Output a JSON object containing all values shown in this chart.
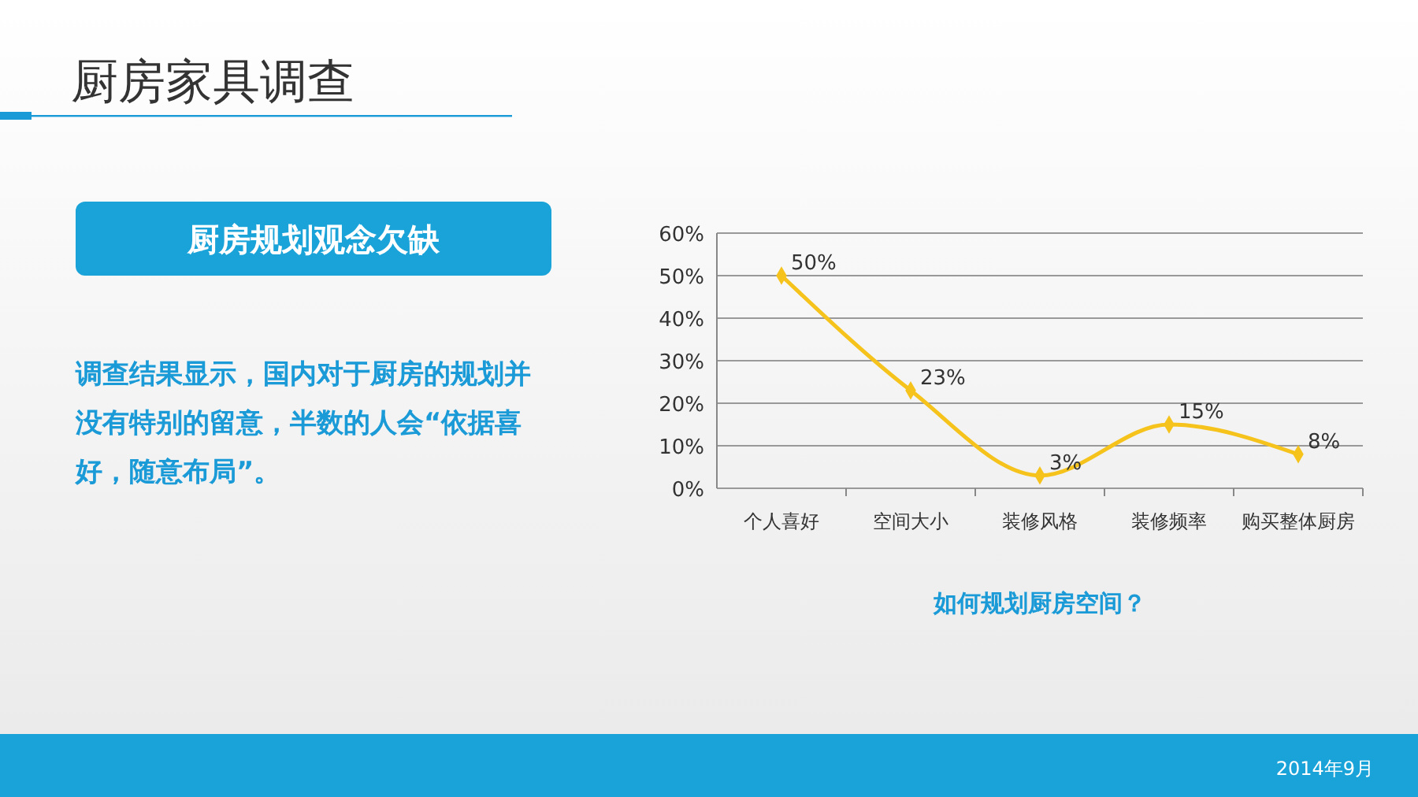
{
  "chart_data": {
    "type": "line",
    "title": "厨房家具调查",
    "subtitle": "厨房规划观念欠缺",
    "xlabel": "如何规划厨房空间？",
    "annotations": [
      "调查结果显示，国内对于厨房的规划并没有特别的留意，半数的人会“依据喜好，随意布局”。",
      "2014年9月"
    ],
    "categories": [
      "个人喜好",
      "空间大小",
      "装修风格",
      "装修频率",
      "购买整体厨房"
    ],
    "series": [
      {
        "color": "#f5c31c",
        "values": [
          50,
          23,
          3,
          15,
          8
        ]
      }
    ],
    "value_labels": [
      "50%",
      "23%",
      "3%",
      "15%",
      "8%"
    ],
    "ylim": [
      0,
      60
    ],
    "yticks": [
      {
        "value": 0,
        "label": "0%"
      },
      {
        "value": 10,
        "label": "10%"
      },
      {
        "value": 20,
        "label": "20%"
      },
      {
        "value": 30,
        "label": "30%"
      },
      {
        "value": 40,
        "label": "40%"
      },
      {
        "value": 50,
        "label": "50%"
      },
      {
        "value": 60,
        "label": "60%"
      }
    ],
    "grid": "y",
    "marker": "diamond",
    "line_style": "solid"
  }
}
